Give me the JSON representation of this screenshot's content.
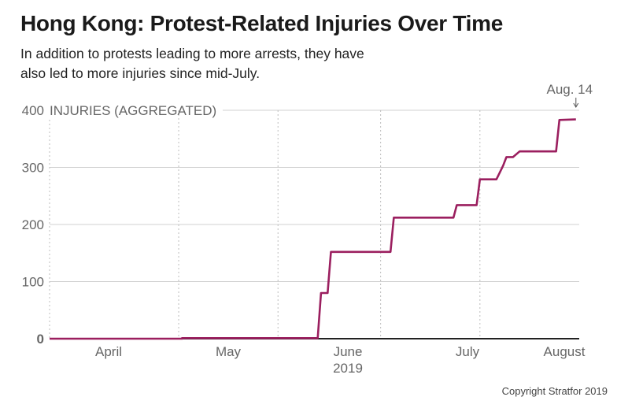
{
  "chart_data": {
    "type": "line",
    "title": "Hong Kong: Protest-Related Injuries Over Time",
    "subtitle": "In addition to protests leading to more arrests, they have also led to more injuries since mid-July.",
    "ylabel": "INJURIES (AGGREGATED)",
    "ylim": [
      0,
      400
    ],
    "y_ticks": [
      "0",
      "100",
      "200",
      "300",
      "400"
    ],
    "x_range": [
      "2019-03-08",
      "2019-08-15"
    ],
    "x_ticks": [
      {
        "date": "2019-04-01",
        "label": "April"
      },
      {
        "date": "2019-05-01",
        "label": "May"
      },
      {
        "date": "2019-06-01",
        "label": "June"
      },
      {
        "date": "2019-07-01",
        "label": "July"
      },
      {
        "date": "2019-08-01",
        "label": "August"
      }
    ],
    "x_year_label": "2019",
    "annotation": {
      "date": "2019-08-14",
      "label": "Aug. 14"
    },
    "line_color": "#9b1f5f",
    "grid": true,
    "series": [
      {
        "points": [
          [
            "2019-03-08",
            0
          ],
          [
            "2019-04-17",
            0
          ],
          [
            "2019-04-17",
            1
          ],
          [
            "2019-05-28",
            1
          ],
          [
            "2019-05-29",
            80
          ],
          [
            "2019-05-31",
            80
          ],
          [
            "2019-06-01",
            152
          ],
          [
            "2019-06-19",
            152
          ],
          [
            "2019-06-20",
            212
          ],
          [
            "2019-07-08",
            212
          ],
          [
            "2019-07-09",
            234
          ],
          [
            "2019-07-15",
            234
          ],
          [
            "2019-07-16",
            279
          ],
          [
            "2019-07-21",
            279
          ],
          [
            "2019-07-23",
            303
          ],
          [
            "2019-07-24",
            318
          ],
          [
            "2019-07-26",
            318
          ],
          [
            "2019-07-28",
            328
          ],
          [
            "2019-08-08",
            328
          ],
          [
            "2019-08-09",
            383
          ],
          [
            "2019-08-14",
            384
          ]
        ]
      }
    ]
  },
  "footer": {
    "copyright": "Copyright Stratfor 2019"
  }
}
